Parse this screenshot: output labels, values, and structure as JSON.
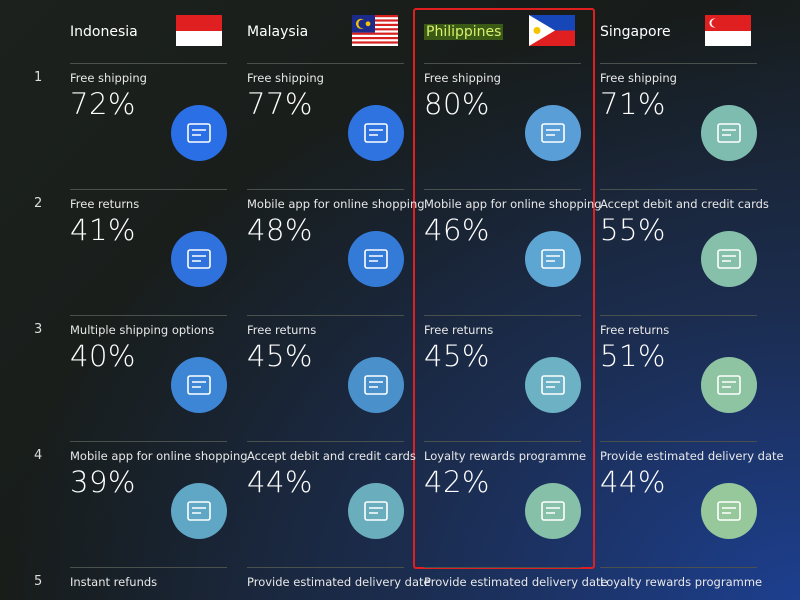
{
  "columns": [
    {
      "country": "Indonesia",
      "rows": [
        {
          "rank": "1",
          "label": "Free shipping",
          "value": "72%"
        },
        {
          "rank": "2",
          "label": "Free returns",
          "value": "41%"
        },
        {
          "rank": "3",
          "label": "Multiple shipping options",
          "value": "40%"
        },
        {
          "rank": "4",
          "label": "Mobile app for online shopping",
          "value": "39%"
        },
        {
          "rank": "5",
          "label": "Instant refunds"
        }
      ]
    },
    {
      "country": "Malaysia",
      "rows": [
        {
          "label": "Free shipping",
          "value": "77%"
        },
        {
          "label": "Mobile app for online shopping",
          "value": "48%"
        },
        {
          "label": "Free returns",
          "value": "45%"
        },
        {
          "label": "Accept debit and credit cards",
          "value": "44%"
        },
        {
          "label": "Provide estimated delivery date"
        }
      ]
    },
    {
      "country": "Philippines",
      "rows": [
        {
          "label": "Free shipping",
          "value": "80%"
        },
        {
          "label": "Mobile app for online shopping",
          "value": "46%"
        },
        {
          "label": "Free returns",
          "value": "45%"
        },
        {
          "label": "Loyalty rewards programme",
          "value": "42%"
        },
        {
          "label": "Provide estimated delivery date"
        }
      ]
    },
    {
      "country": "Singapore",
      "rows": [
        {
          "label": "Free shipping",
          "value": "71%"
        },
        {
          "label": "Accept debit and credit cards",
          "value": "55%"
        },
        {
          "label": "Free returns",
          "value": "51%"
        },
        {
          "label": "Provide estimated delivery date",
          "value": "44%"
        },
        {
          "label": "Loyalty rewards programme"
        }
      ]
    }
  ]
}
